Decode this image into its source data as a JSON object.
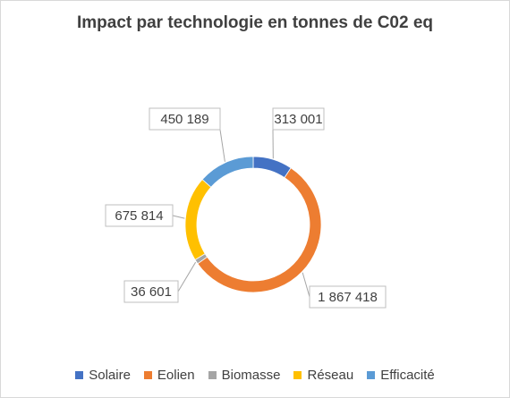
{
  "chart_data": {
    "type": "pie",
    "variant": "doughnut",
    "title": "Impact par technologie en tonnes de C02 eq",
    "categories": [
      "Solaire",
      "Eolien",
      "Biomasse",
      "Réseau",
      "Efficacité"
    ],
    "values": [
      313001,
      1867418,
      36601,
      675814,
      450189
    ],
    "value_labels": [
      "313 001",
      "1 867 418",
      "36 601",
      "675 814",
      "450 189"
    ],
    "colors": [
      "#4472c4",
      "#ed7d31",
      "#a5a5a5",
      "#ffc000",
      "#5b9bd5"
    ],
    "legend_position": "bottom"
  }
}
